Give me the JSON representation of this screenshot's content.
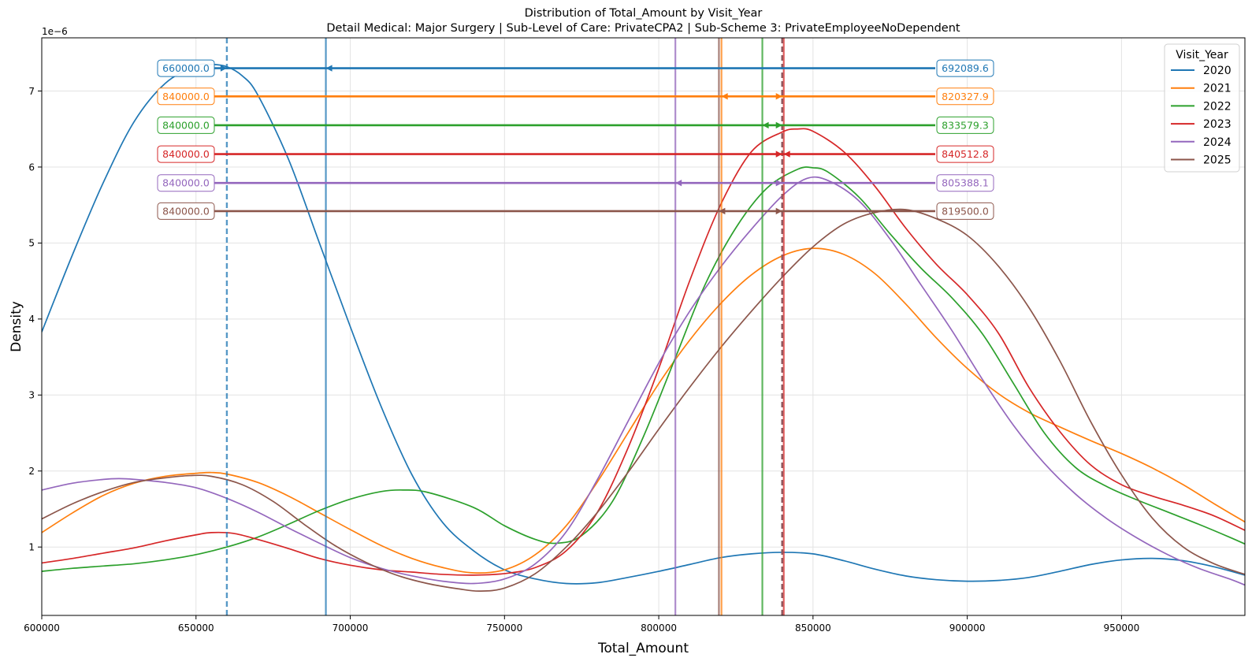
{
  "chart_data": {
    "type": "line",
    "title": "Distribution of Total_Amount by Visit_Year",
    "subtitle": "Detail Medical: Major Surgery | Sub-Level of Care: PrivateCPA2 | Sub-Scheme 3: PrivateEmployeeNoDependent",
    "xlabel": "Total_Amount",
    "ylabel": "Density",
    "y_exponent_label": "1e−6",
    "xlim": [
      600000,
      990000
    ],
    "ylim": [
      0.1,
      7.7
    ],
    "x_ticks": [
      600000,
      650000,
      700000,
      750000,
      800000,
      850000,
      900000,
      950000
    ],
    "x_tick_labels": [
      "600000",
      "650000",
      "700000",
      "750000",
      "800000",
      "850000",
      "900000",
      "950000"
    ],
    "y_ticks": [
      1,
      2,
      3,
      4,
      5,
      6,
      7
    ],
    "y_tick_labels": [
      "1",
      "2",
      "3",
      "4",
      "5",
      "6",
      "7"
    ],
    "grid": true,
    "legend": {
      "title": "Visit_Year",
      "placement": "top-right"
    },
    "series": [
      {
        "name": "2020",
        "color": "#1f77b4",
        "median": 660000,
        "mean": 692089.6,
        "median_label": "660000.0",
        "mean_label": "692089.6",
        "annotation_y": 7.3,
        "points": [
          [
            600000,
            3.83
          ],
          [
            610000,
            4.85
          ],
          [
            620000,
            5.8
          ],
          [
            630000,
            6.6
          ],
          [
            640000,
            7.1
          ],
          [
            650000,
            7.33
          ],
          [
            655000,
            7.35
          ],
          [
            660000,
            7.32
          ],
          [
            665000,
            7.2
          ],
          [
            670000,
            6.95
          ],
          [
            680000,
            6.1
          ],
          [
            690000,
            5.0
          ],
          [
            700000,
            3.9
          ],
          [
            710000,
            2.85
          ],
          [
            720000,
            1.95
          ],
          [
            730000,
            1.32
          ],
          [
            740000,
            0.95
          ],
          [
            750000,
            0.7
          ],
          [
            760000,
            0.58
          ],
          [
            770000,
            0.52
          ],
          [
            780000,
            0.53
          ],
          [
            790000,
            0.6
          ],
          [
            800000,
            0.68
          ],
          [
            810000,
            0.77
          ],
          [
            820000,
            0.86
          ],
          [
            830000,
            0.91
          ],
          [
            840000,
            0.93
          ],
          [
            850000,
            0.91
          ],
          [
            860000,
            0.82
          ],
          [
            870000,
            0.71
          ],
          [
            880000,
            0.62
          ],
          [
            890000,
            0.57
          ],
          [
            900000,
            0.55
          ],
          [
            910000,
            0.56
          ],
          [
            920000,
            0.6
          ],
          [
            930000,
            0.68
          ],
          [
            940000,
            0.77
          ],
          [
            950000,
            0.83
          ],
          [
            960000,
            0.85
          ],
          [
            970000,
            0.82
          ],
          [
            980000,
            0.74
          ],
          [
            990000,
            0.63
          ]
        ]
      },
      {
        "name": "2021",
        "color": "#ff7f0e",
        "median": 840000,
        "mean": 820327.9,
        "median_label": "840000.0",
        "mean_label": "820327.9",
        "annotation_y": 6.93,
        "points": [
          [
            600000,
            1.19
          ],
          [
            610000,
            1.45
          ],
          [
            620000,
            1.68
          ],
          [
            630000,
            1.84
          ],
          [
            640000,
            1.93
          ],
          [
            650000,
            1.97
          ],
          [
            655000,
            1.98
          ],
          [
            660000,
            1.96
          ],
          [
            670000,
            1.85
          ],
          [
            680000,
            1.67
          ],
          [
            690000,
            1.45
          ],
          [
            700000,
            1.23
          ],
          [
            710000,
            1.02
          ],
          [
            720000,
            0.85
          ],
          [
            730000,
            0.73
          ],
          [
            740000,
            0.66
          ],
          [
            750000,
            0.7
          ],
          [
            760000,
            0.9
          ],
          [
            770000,
            1.28
          ],
          [
            780000,
            1.85
          ],
          [
            790000,
            2.5
          ],
          [
            800000,
            3.15
          ],
          [
            810000,
            3.72
          ],
          [
            820000,
            4.2
          ],
          [
            830000,
            4.58
          ],
          [
            840000,
            4.83
          ],
          [
            850000,
            4.93
          ],
          [
            860000,
            4.85
          ],
          [
            870000,
            4.6
          ],
          [
            880000,
            4.2
          ],
          [
            890000,
            3.75
          ],
          [
            900000,
            3.35
          ],
          [
            910000,
            3.02
          ],
          [
            920000,
            2.77
          ],
          [
            930000,
            2.58
          ],
          [
            940000,
            2.4
          ],
          [
            950000,
            2.23
          ],
          [
            960000,
            2.04
          ],
          [
            970000,
            1.82
          ],
          [
            980000,
            1.57
          ],
          [
            990000,
            1.33
          ]
        ]
      },
      {
        "name": "2022",
        "color": "#2ca02c",
        "median": 840000,
        "mean": 833579.3,
        "median_label": "840000.0",
        "mean_label": "833579.3",
        "annotation_y": 6.55,
        "points": [
          [
            600000,
            0.68
          ],
          [
            610000,
            0.72
          ],
          [
            620000,
            0.75
          ],
          [
            630000,
            0.78
          ],
          [
            640000,
            0.83
          ],
          [
            650000,
            0.9
          ],
          [
            660000,
            1.0
          ],
          [
            670000,
            1.13
          ],
          [
            680000,
            1.3
          ],
          [
            690000,
            1.48
          ],
          [
            700000,
            1.63
          ],
          [
            710000,
            1.73
          ],
          [
            717000,
            1.75
          ],
          [
            725000,
            1.72
          ],
          [
            740000,
            1.52
          ],
          [
            750000,
            1.28
          ],
          [
            760000,
            1.1
          ],
          [
            767000,
            1.05
          ],
          [
            775000,
            1.15
          ],
          [
            785000,
            1.6
          ],
          [
            795000,
            2.45
          ],
          [
            805000,
            3.45
          ],
          [
            815000,
            4.45
          ],
          [
            825000,
            5.2
          ],
          [
            835000,
            5.72
          ],
          [
            845000,
            5.97
          ],
          [
            850000,
            5.99
          ],
          [
            855000,
            5.93
          ],
          [
            865000,
            5.6
          ],
          [
            875000,
            5.12
          ],
          [
            885000,
            4.67
          ],
          [
            895000,
            4.28
          ],
          [
            905000,
            3.8
          ],
          [
            915000,
            3.15
          ],
          [
            925000,
            2.5
          ],
          [
            935000,
            2.05
          ],
          [
            945000,
            1.8
          ],
          [
            955000,
            1.62
          ],
          [
            965000,
            1.46
          ],
          [
            975000,
            1.3
          ],
          [
            985000,
            1.13
          ],
          [
            990000,
            1.04
          ]
        ]
      },
      {
        "name": "2023",
        "color": "#d62728",
        "median": 840000,
        "mean": 840512.8,
        "median_label": "840000.0",
        "mean_label": "840512.8",
        "annotation_y": 6.17,
        "points": [
          [
            600000,
            0.79
          ],
          [
            610000,
            0.85
          ],
          [
            620000,
            0.92
          ],
          [
            630000,
            0.99
          ],
          [
            640000,
            1.08
          ],
          [
            650000,
            1.16
          ],
          [
            655000,
            1.19
          ],
          [
            662000,
            1.18
          ],
          [
            670000,
            1.1
          ],
          [
            680000,
            0.98
          ],
          [
            690000,
            0.85
          ],
          [
            700000,
            0.76
          ],
          [
            710000,
            0.7
          ],
          [
            720000,
            0.67
          ],
          [
            730000,
            0.64
          ],
          [
            740000,
            0.63
          ],
          [
            750000,
            0.65
          ],
          [
            760000,
            0.73
          ],
          [
            770000,
            0.95
          ],
          [
            780000,
            1.45
          ],
          [
            790000,
            2.3
          ],
          [
            800000,
            3.35
          ],
          [
            810000,
            4.5
          ],
          [
            820000,
            5.5
          ],
          [
            830000,
            6.2
          ],
          [
            840000,
            6.46
          ],
          [
            845000,
            6.5
          ],
          [
            850000,
            6.47
          ],
          [
            860000,
            6.2
          ],
          [
            870000,
            5.75
          ],
          [
            880000,
            5.2
          ],
          [
            890000,
            4.72
          ],
          [
            900000,
            4.32
          ],
          [
            910000,
            3.82
          ],
          [
            920000,
            3.1
          ],
          [
            930000,
            2.52
          ],
          [
            940000,
            2.08
          ],
          [
            950000,
            1.82
          ],
          [
            960000,
            1.67
          ],
          [
            970000,
            1.55
          ],
          [
            980000,
            1.41
          ],
          [
            990000,
            1.22
          ]
        ]
      },
      {
        "name": "2024",
        "color": "#9467bd",
        "median": 840000,
        "mean": 805388.1,
        "median_label": "840000.0",
        "mean_label": "805388.1",
        "annotation_y": 5.79,
        "points": [
          [
            600000,
            1.75
          ],
          [
            610000,
            1.84
          ],
          [
            620000,
            1.89
          ],
          [
            625000,
            1.9
          ],
          [
            630000,
            1.89
          ],
          [
            640000,
            1.85
          ],
          [
            650000,
            1.78
          ],
          [
            660000,
            1.64
          ],
          [
            670000,
            1.46
          ],
          [
            680000,
            1.25
          ],
          [
            690000,
            1.05
          ],
          [
            700000,
            0.86
          ],
          [
            710000,
            0.72
          ],
          [
            720000,
            0.62
          ],
          [
            730000,
            0.55
          ],
          [
            740000,
            0.52
          ],
          [
            750000,
            0.58
          ],
          [
            760000,
            0.78
          ],
          [
            770000,
            1.2
          ],
          [
            780000,
            1.88
          ],
          [
            790000,
            2.65
          ],
          [
            800000,
            3.42
          ],
          [
            810000,
            4.1
          ],
          [
            820000,
            4.68
          ],
          [
            830000,
            5.18
          ],
          [
            840000,
            5.62
          ],
          [
            848000,
            5.85
          ],
          [
            855000,
            5.82
          ],
          [
            865000,
            5.55
          ],
          [
            875000,
            5.05
          ],
          [
            885000,
            4.45
          ],
          [
            895000,
            3.85
          ],
          [
            905000,
            3.2
          ],
          [
            915000,
            2.6
          ],
          [
            925000,
            2.1
          ],
          [
            935000,
            1.7
          ],
          [
            945000,
            1.38
          ],
          [
            955000,
            1.12
          ],
          [
            965000,
            0.9
          ],
          [
            975000,
            0.72
          ],
          [
            985000,
            0.58
          ],
          [
            990000,
            0.5
          ]
        ]
      },
      {
        "name": "2025",
        "color": "#8c564b",
        "median": 840000,
        "mean": 819500.0,
        "median_label": "840000.0",
        "mean_label": "819500.0",
        "annotation_y": 5.42,
        "points": [
          [
            600000,
            1.37
          ],
          [
            610000,
            1.57
          ],
          [
            620000,
            1.73
          ],
          [
            630000,
            1.85
          ],
          [
            640000,
            1.91
          ],
          [
            648000,
            1.94
          ],
          [
            655000,
            1.93
          ],
          [
            665000,
            1.82
          ],
          [
            675000,
            1.6
          ],
          [
            685000,
            1.3
          ],
          [
            695000,
            1.02
          ],
          [
            705000,
            0.8
          ],
          [
            715000,
            0.63
          ],
          [
            725000,
            0.52
          ],
          [
            735000,
            0.45
          ],
          [
            742000,
            0.42
          ],
          [
            750000,
            0.46
          ],
          [
            760000,
            0.65
          ],
          [
            770000,
            1.0
          ],
          [
            780000,
            1.45
          ],
          [
            790000,
            1.98
          ],
          [
            800000,
            2.55
          ],
          [
            810000,
            3.1
          ],
          [
            820000,
            3.62
          ],
          [
            830000,
            4.1
          ],
          [
            840000,
            4.55
          ],
          [
            850000,
            4.95
          ],
          [
            860000,
            5.25
          ],
          [
            870000,
            5.4
          ],
          [
            880000,
            5.44
          ],
          [
            890000,
            5.32
          ],
          [
            900000,
            5.1
          ],
          [
            910000,
            4.7
          ],
          [
            920000,
            4.15
          ],
          [
            930000,
            3.45
          ],
          [
            940000,
            2.65
          ],
          [
            950000,
            1.95
          ],
          [
            960000,
            1.38
          ],
          [
            970000,
            1.0
          ],
          [
            980000,
            0.78
          ],
          [
            990000,
            0.64
          ]
        ]
      }
    ]
  }
}
